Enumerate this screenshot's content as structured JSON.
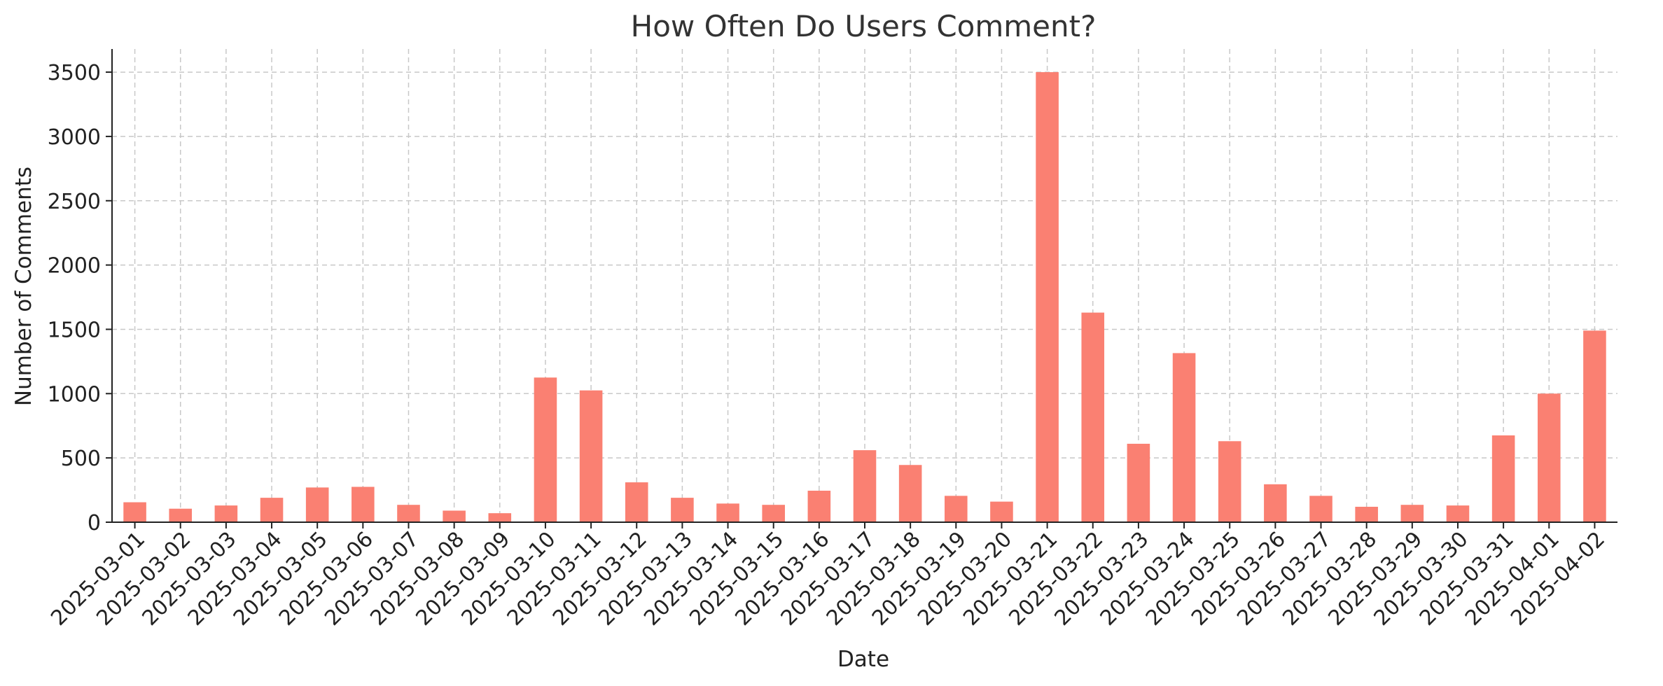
{
  "chart_data": {
    "type": "bar",
    "title": "How Often Do Users Comment?",
    "xlabel": "Date",
    "ylabel": "Number of Comments",
    "categories": [
      "2025-03-01",
      "2025-03-02",
      "2025-03-03",
      "2025-03-04",
      "2025-03-05",
      "2025-03-06",
      "2025-03-07",
      "2025-03-08",
      "2025-03-09",
      "2025-03-10",
      "2025-03-11",
      "2025-03-12",
      "2025-03-13",
      "2025-03-14",
      "2025-03-15",
      "2025-03-16",
      "2025-03-17",
      "2025-03-18",
      "2025-03-19",
      "2025-03-20",
      "2025-03-21",
      "2025-03-22",
      "2025-03-23",
      "2025-03-24",
      "2025-03-25",
      "2025-03-26",
      "2025-03-27",
      "2025-03-28",
      "2025-03-29",
      "2025-03-30",
      "2025-03-31",
      "2025-04-01",
      "2025-04-02"
    ],
    "values": [
      155,
      105,
      130,
      190,
      270,
      275,
      135,
      90,
      70,
      1125,
      1025,
      310,
      190,
      145,
      135,
      245,
      560,
      445,
      205,
      160,
      3500,
      1630,
      610,
      1315,
      630,
      295,
      205,
      120,
      135,
      130,
      675,
      1000,
      1490
    ],
    "ylim": [
      0,
      3680
    ],
    "yticks": [
      0,
      500,
      1000,
      1500,
      2000,
      2500,
      3000,
      3500
    ],
    "grid": true,
    "legend": "none",
    "bar_color": "#FA8072",
    "grid_color": "#c8c8c8",
    "axis_color": "#222222"
  }
}
